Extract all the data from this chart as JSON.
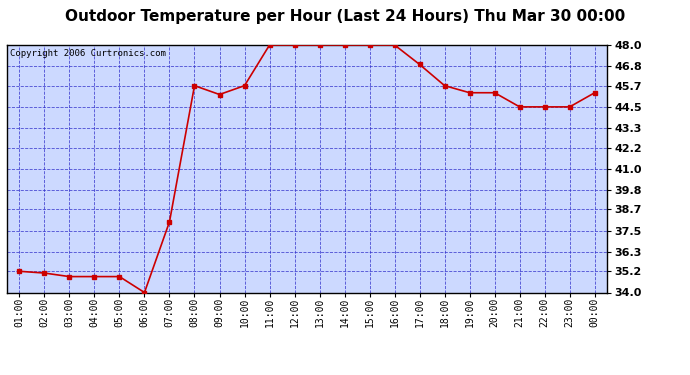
{
  "title": "Outdoor Temperature per Hour (Last 24 Hours) Thu Mar 30 00:00",
  "copyright": "Copyright 2006 Curtronics.com",
  "x_labels": [
    "01:00",
    "02:00",
    "03:00",
    "04:00",
    "05:00",
    "06:00",
    "07:00",
    "08:00",
    "09:00",
    "10:00",
    "11:00",
    "12:00",
    "13:00",
    "14:00",
    "15:00",
    "16:00",
    "17:00",
    "18:00",
    "19:00",
    "20:00",
    "21:00",
    "22:00",
    "23:00",
    "00:00"
  ],
  "y_values": [
    35.2,
    35.1,
    34.9,
    34.9,
    34.9,
    34.0,
    38.0,
    45.7,
    45.2,
    45.7,
    48.0,
    48.0,
    48.0,
    48.0,
    48.0,
    48.0,
    46.9,
    45.7,
    45.3,
    45.3,
    44.5,
    44.5,
    44.5,
    45.3
  ],
  "y_min": 34.0,
  "y_max": 48.0,
  "y_ticks": [
    34.0,
    35.2,
    36.3,
    37.5,
    38.7,
    39.8,
    41.0,
    42.2,
    43.3,
    44.5,
    45.7,
    46.8,
    48.0
  ],
  "y_tick_labels": [
    "34.0",
    "35.2",
    "36.3",
    "37.5",
    "38.7",
    "39.8",
    "41.0",
    "42.2",
    "43.3",
    "44.5",
    "45.7",
    "46.8",
    "48.0"
  ],
  "line_color": "#cc0000",
  "marker_color": "#cc0000",
  "bg_color": "#ccd9ff",
  "grid_color": "#3333cc",
  "title_fontsize": 11,
  "copyright_fontsize": 6.5,
  "tick_fontsize": 7,
  "y_tick_fontsize": 8
}
